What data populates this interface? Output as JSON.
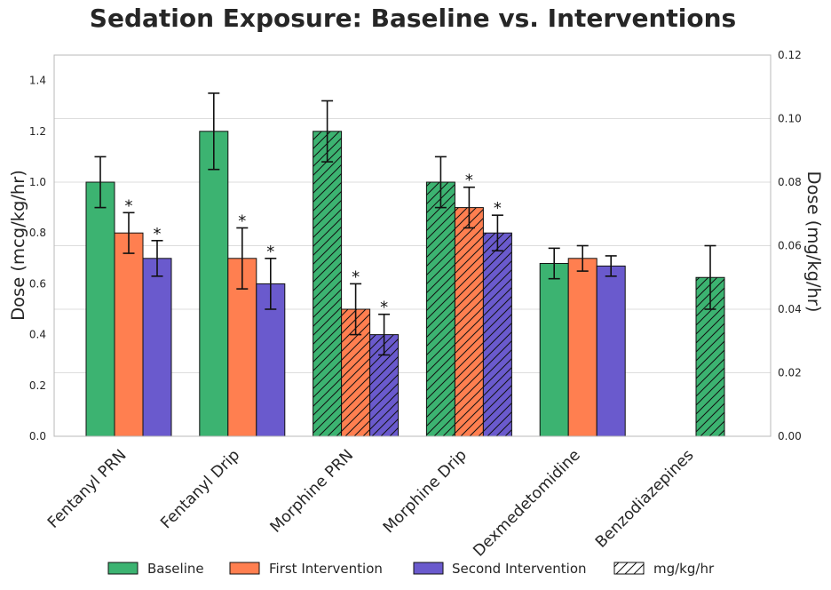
{
  "chart_data": {
    "type": "bar",
    "title": "Sedation Exposure: Baseline vs. Interventions",
    "ylabel": "Dose (mcg/kg/hr)",
    "ylabel_right": "Dose (mg/kg/hr)",
    "ylim": [
      0,
      1.5
    ],
    "ylim_right": [
      0,
      0.12
    ],
    "yticks": [
      "0.0",
      "0.2",
      "0.4",
      "0.6",
      "0.8",
      "1.0",
      "1.2",
      "1.4"
    ],
    "yticks_right": [
      "0.00",
      "0.02",
      "0.04",
      "0.06",
      "0.08",
      "0.10",
      "0.12"
    ],
    "grid": true,
    "categories": [
      "Fentanyl PRN",
      "Fentanyl Drip",
      "Morphine PRN",
      "Morphine Drip",
      "Dexmedetomidine",
      "Benzodiazepines"
    ],
    "hatched": [
      false,
      false,
      true,
      true,
      false,
      true
    ],
    "series": [
      {
        "name": "Baseline",
        "color": "#3CB371",
        "values": [
          1.0,
          1.2,
          0.096,
          0.08,
          0.68,
          0.05
        ],
        "errors": [
          0.1,
          0.15,
          0.0096,
          0.008,
          0.06,
          0.01
        ],
        "significant": [
          false,
          false,
          false,
          false,
          false,
          false
        ]
      },
      {
        "name": "First Intervention",
        "color": "#FF7F50",
        "values": [
          0.8,
          0.7,
          0.04,
          0.072,
          0.7,
          null
        ],
        "errors": [
          0.08,
          0.12,
          0.008,
          0.0064,
          0.05,
          null
        ],
        "significant": [
          true,
          true,
          true,
          true,
          false,
          false
        ]
      },
      {
        "name": "Second Intervention",
        "color": "#6A5ACD",
        "values": [
          0.7,
          0.6,
          0.032,
          0.064,
          0.67,
          null
        ],
        "errors": [
          0.07,
          0.1,
          0.0064,
          0.0056,
          0.04,
          null
        ],
        "significant": [
          true,
          true,
          true,
          true,
          false,
          false
        ]
      }
    ],
    "significance_marker": "*",
    "legend": {
      "position": "bottom",
      "hatch_label": "mg/kg/hr",
      "hatch_color": "#111111"
    }
  }
}
